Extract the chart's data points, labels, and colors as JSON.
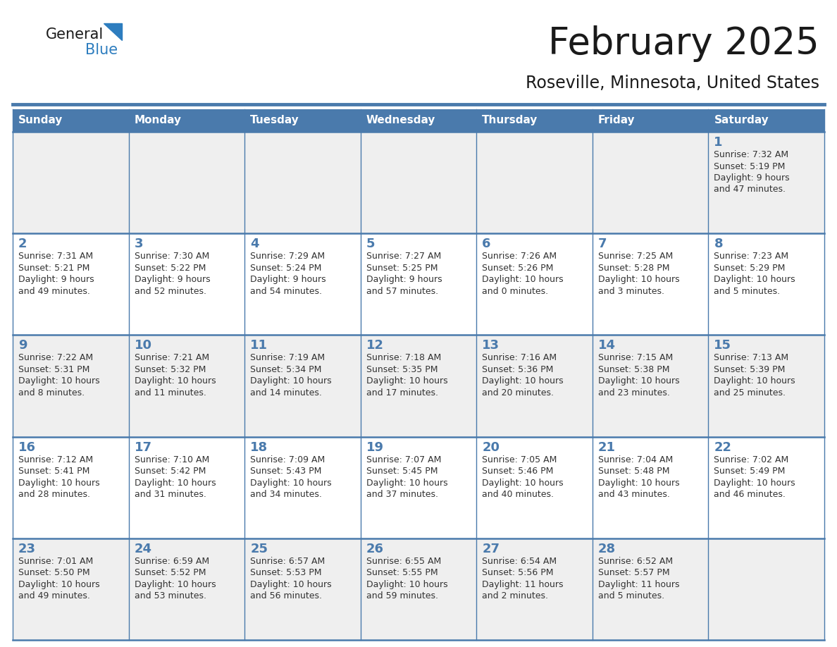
{
  "title": "February 2025",
  "subtitle": "Roseville, Minnesota, United States",
  "header_bg": "#4a7aac",
  "header_text_color": "#FFFFFF",
  "cell_bg_odd": "#EFEFEF",
  "cell_bg_even": "#FFFFFF",
  "border_color": "#4a7aac",
  "day_headers": [
    "Sunday",
    "Monday",
    "Tuesday",
    "Wednesday",
    "Thursday",
    "Friday",
    "Saturday"
  ],
  "title_color": "#1a1a1a",
  "subtitle_color": "#1a1a1a",
  "day_num_color": "#4a7aac",
  "info_color": "#333333",
  "logo_general_color": "#1a1a1a",
  "logo_blue_color": "#2D7DBF",
  "weeks": [
    [
      {
        "day": "",
        "sunrise": "",
        "sunset": "",
        "daylight": ""
      },
      {
        "day": "",
        "sunrise": "",
        "sunset": "",
        "daylight": ""
      },
      {
        "day": "",
        "sunrise": "",
        "sunset": "",
        "daylight": ""
      },
      {
        "day": "",
        "sunrise": "",
        "sunset": "",
        "daylight": ""
      },
      {
        "day": "",
        "sunrise": "",
        "sunset": "",
        "daylight": ""
      },
      {
        "day": "",
        "sunrise": "",
        "sunset": "",
        "daylight": ""
      },
      {
        "day": "1",
        "sunrise": "7:32 AM",
        "sunset": "5:19 PM",
        "daylight": "9 hours\nand 47 minutes."
      }
    ],
    [
      {
        "day": "2",
        "sunrise": "7:31 AM",
        "sunset": "5:21 PM",
        "daylight": "9 hours\nand 49 minutes."
      },
      {
        "day": "3",
        "sunrise": "7:30 AM",
        "sunset": "5:22 PM",
        "daylight": "9 hours\nand 52 minutes."
      },
      {
        "day": "4",
        "sunrise": "7:29 AM",
        "sunset": "5:24 PM",
        "daylight": "9 hours\nand 54 minutes."
      },
      {
        "day": "5",
        "sunrise": "7:27 AM",
        "sunset": "5:25 PM",
        "daylight": "9 hours\nand 57 minutes."
      },
      {
        "day": "6",
        "sunrise": "7:26 AM",
        "sunset": "5:26 PM",
        "daylight": "10 hours\nand 0 minutes."
      },
      {
        "day": "7",
        "sunrise": "7:25 AM",
        "sunset": "5:28 PM",
        "daylight": "10 hours\nand 3 minutes."
      },
      {
        "day": "8",
        "sunrise": "7:23 AM",
        "sunset": "5:29 PM",
        "daylight": "10 hours\nand 5 minutes."
      }
    ],
    [
      {
        "day": "9",
        "sunrise": "7:22 AM",
        "sunset": "5:31 PM",
        "daylight": "10 hours\nand 8 minutes."
      },
      {
        "day": "10",
        "sunrise": "7:21 AM",
        "sunset": "5:32 PM",
        "daylight": "10 hours\nand 11 minutes."
      },
      {
        "day": "11",
        "sunrise": "7:19 AM",
        "sunset": "5:34 PM",
        "daylight": "10 hours\nand 14 minutes."
      },
      {
        "day": "12",
        "sunrise": "7:18 AM",
        "sunset": "5:35 PM",
        "daylight": "10 hours\nand 17 minutes."
      },
      {
        "day": "13",
        "sunrise": "7:16 AM",
        "sunset": "5:36 PM",
        "daylight": "10 hours\nand 20 minutes."
      },
      {
        "day": "14",
        "sunrise": "7:15 AM",
        "sunset": "5:38 PM",
        "daylight": "10 hours\nand 23 minutes."
      },
      {
        "day": "15",
        "sunrise": "7:13 AM",
        "sunset": "5:39 PM",
        "daylight": "10 hours\nand 25 minutes."
      }
    ],
    [
      {
        "day": "16",
        "sunrise": "7:12 AM",
        "sunset": "5:41 PM",
        "daylight": "10 hours\nand 28 minutes."
      },
      {
        "day": "17",
        "sunrise": "7:10 AM",
        "sunset": "5:42 PM",
        "daylight": "10 hours\nand 31 minutes."
      },
      {
        "day": "18",
        "sunrise": "7:09 AM",
        "sunset": "5:43 PM",
        "daylight": "10 hours\nand 34 minutes."
      },
      {
        "day": "19",
        "sunrise": "7:07 AM",
        "sunset": "5:45 PM",
        "daylight": "10 hours\nand 37 minutes."
      },
      {
        "day": "20",
        "sunrise": "7:05 AM",
        "sunset": "5:46 PM",
        "daylight": "10 hours\nand 40 minutes."
      },
      {
        "day": "21",
        "sunrise": "7:04 AM",
        "sunset": "5:48 PM",
        "daylight": "10 hours\nand 43 minutes."
      },
      {
        "day": "22",
        "sunrise": "7:02 AM",
        "sunset": "5:49 PM",
        "daylight": "10 hours\nand 46 minutes."
      }
    ],
    [
      {
        "day": "23",
        "sunrise": "7:01 AM",
        "sunset": "5:50 PM",
        "daylight": "10 hours\nand 49 minutes."
      },
      {
        "day": "24",
        "sunrise": "6:59 AM",
        "sunset": "5:52 PM",
        "daylight": "10 hours\nand 53 minutes."
      },
      {
        "day": "25",
        "sunrise": "6:57 AM",
        "sunset": "5:53 PM",
        "daylight": "10 hours\nand 56 minutes."
      },
      {
        "day": "26",
        "sunrise": "6:55 AM",
        "sunset": "5:55 PM",
        "daylight": "10 hours\nand 59 minutes."
      },
      {
        "day": "27",
        "sunrise": "6:54 AM",
        "sunset": "5:56 PM",
        "daylight": "11 hours\nand 2 minutes."
      },
      {
        "day": "28",
        "sunrise": "6:52 AM",
        "sunset": "5:57 PM",
        "daylight": "11 hours\nand 5 minutes."
      },
      {
        "day": "",
        "sunrise": "",
        "sunset": "",
        "daylight": ""
      }
    ]
  ]
}
